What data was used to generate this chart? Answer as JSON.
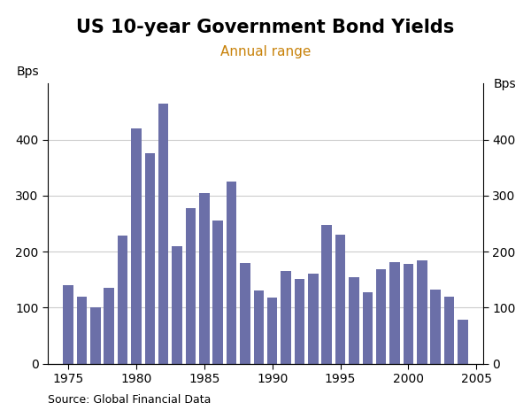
{
  "title": "US 10-year Government Bond Yields",
  "subtitle": "Annual range",
  "ylabel_left": "Bps",
  "ylabel_right": "Bps",
  "source": "Source: Global Financial Data",
  "years": [
    1975,
    1976,
    1977,
    1978,
    1979,
    1980,
    1981,
    1982,
    1983,
    1984,
    1985,
    1986,
    1987,
    1988,
    1989,
    1990,
    1991,
    1992,
    1993,
    1994,
    1995,
    1996,
    1997,
    1998,
    1999,
    2000,
    2001,
    2002,
    2003,
    2004
  ],
  "values": [
    140,
    120,
    100,
    135,
    228,
    420,
    375,
    465,
    210,
    278,
    305,
    255,
    325,
    180,
    130,
    118,
    165,
    152,
    160,
    248,
    230,
    155,
    127,
    168,
    182,
    178,
    185,
    133,
    120,
    78
  ],
  "bar_color": "#6b6fa8",
  "ylim": [
    0,
    500
  ],
  "yticks": [
    0,
    100,
    200,
    300,
    400
  ],
  "xticks": [
    1975,
    1980,
    1985,
    1990,
    1995,
    2000,
    2005
  ],
  "grid_color": "#cccccc",
  "background_color": "#ffffff",
  "title_fontsize": 15,
  "subtitle_fontsize": 11,
  "subtitle_color": "#c8820a",
  "axis_label_fontsize": 10,
  "tick_fontsize": 10,
  "source_fontsize": 9
}
